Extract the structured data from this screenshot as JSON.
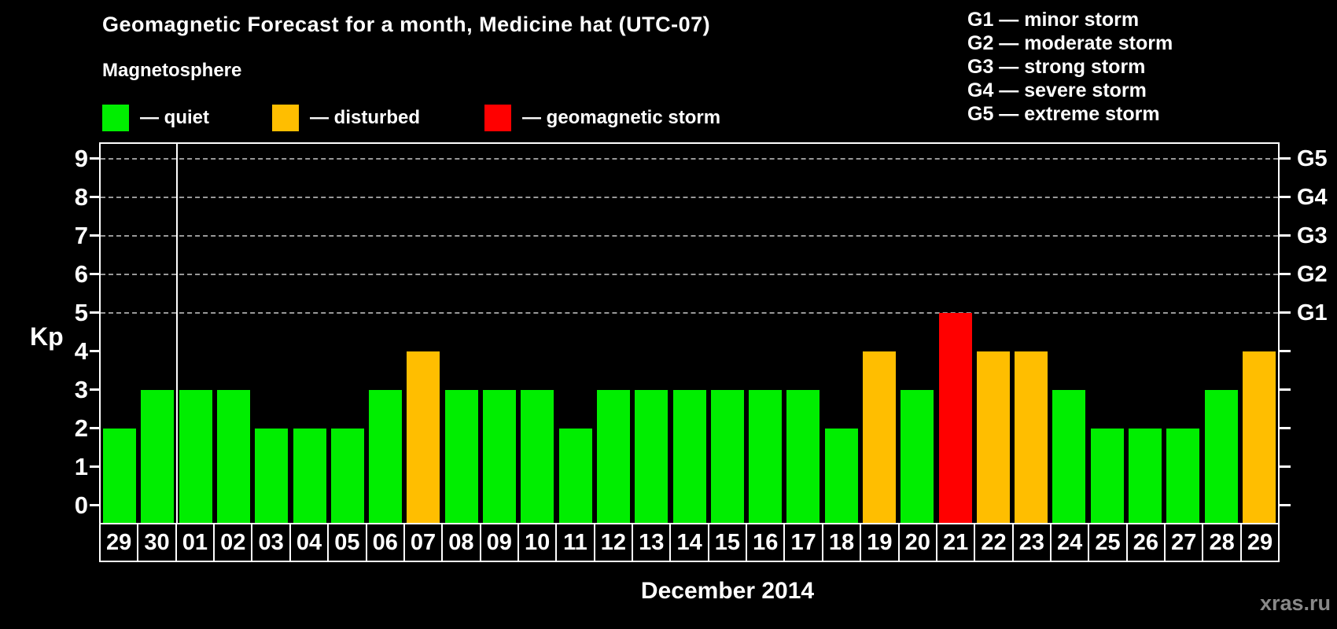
{
  "title": "Geomagnetic Forecast for a month, Medicine hat (UTC-07)",
  "subtitle": "Magnetosphere",
  "watermark": "xras.ru",
  "colors": {
    "quiet": "#00ee00",
    "disturbed": "#ffbe00",
    "storm": "#ff0000",
    "axis": "#ffffff",
    "gridline": "#999999",
    "background": "#000000"
  },
  "legend": {
    "items": [
      {
        "status": "quiet",
        "label": "— quiet"
      },
      {
        "status": "disturbed",
        "label": "— disturbed"
      },
      {
        "status": "storm",
        "label": "— geomagnetic storm"
      }
    ]
  },
  "g_legend": [
    "G1 — minor storm",
    "G2 — moderate storm",
    "G3 — strong storm",
    "G4 — severe storm",
    "G5 — extreme storm"
  ],
  "chart_data": {
    "type": "bar",
    "title": "Geomagnetic Forecast for a month, Medicine hat (UTC-07)",
    "xlabel": "December 2014",
    "ylabel": "Kp",
    "ylim": [
      0,
      9.4
    ],
    "y_ticks": [
      0,
      1,
      2,
      3,
      4,
      5,
      6,
      7,
      8,
      9
    ],
    "gridlines_kp": [
      5,
      6,
      7,
      8,
      9
    ],
    "grid": "dashed horizontal lines at Kp 5-9 only",
    "legend_position": "top-left",
    "categories": [
      "29",
      "30",
      "01",
      "02",
      "03",
      "04",
      "05",
      "06",
      "07",
      "08",
      "09",
      "10",
      "11",
      "12",
      "13",
      "14",
      "15",
      "16",
      "17",
      "18",
      "19",
      "20",
      "21",
      "22",
      "23",
      "24",
      "25",
      "26",
      "27",
      "28",
      "29"
    ],
    "values": [
      2,
      3,
      3,
      3,
      2,
      2,
      2,
      3,
      4,
      3,
      3,
      3,
      2,
      3,
      3,
      3,
      3,
      3,
      3,
      2,
      4,
      3,
      5,
      4,
      4,
      3,
      2,
      2,
      2,
      3,
      4
    ],
    "statuses": [
      "quiet",
      "quiet",
      "quiet",
      "quiet",
      "quiet",
      "quiet",
      "quiet",
      "quiet",
      "disturbed",
      "quiet",
      "quiet",
      "quiet",
      "quiet",
      "quiet",
      "quiet",
      "quiet",
      "quiet",
      "quiet",
      "quiet",
      "quiet",
      "disturbed",
      "quiet",
      "storm",
      "disturbed",
      "disturbed",
      "quiet",
      "quiet",
      "quiet",
      "quiet",
      "quiet",
      "disturbed"
    ],
    "right_axis_labels": [
      {
        "label": "G1",
        "kp": 5
      },
      {
        "label": "G2",
        "kp": 6
      },
      {
        "label": "G3",
        "kp": 7
      },
      {
        "label": "G4",
        "kp": 8
      },
      {
        "label": "G5",
        "kp": 9
      }
    ],
    "month_separator_after_index": 2
  }
}
